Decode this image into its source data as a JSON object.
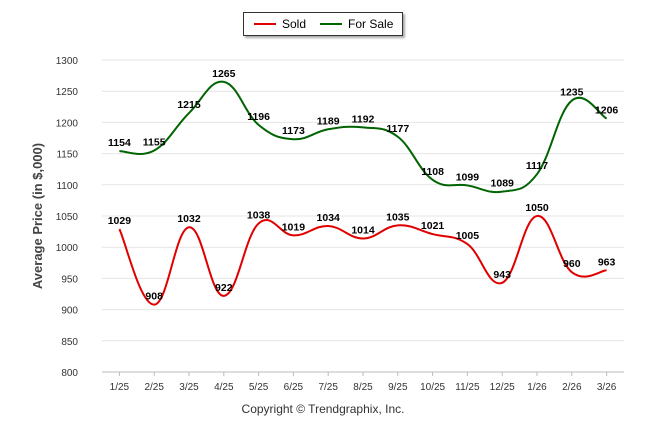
{
  "chart_data": {
    "type": "line",
    "title": "",
    "xlabel": "",
    "ylabel": "Average Price (in $,000)",
    "ylim": [
      800,
      1300
    ],
    "yticks": [
      800,
      850,
      900,
      950,
      1000,
      1050,
      1100,
      1150,
      1200,
      1250,
      1300
    ],
    "categories": [
      "1/25",
      "2/25",
      "3/25",
      "4/25",
      "5/25",
      "6/25",
      "7/25",
      "8/25",
      "9/25",
      "10/25",
      "11/25",
      "12/25",
      "1/26",
      "2/26",
      "3/26"
    ],
    "series": [
      {
        "name": "Sold",
        "color": "#e00000",
        "values": [
          1029,
          908,
          1032,
          922,
          1038,
          1019,
          1034,
          1014,
          1035,
          1021,
          1005,
          943,
          1050,
          960,
          963
        ]
      },
      {
        "name": "For Sale",
        "color": "#006400",
        "values": [
          1154,
          1155,
          1215,
          1265,
          1196,
          1173,
          1189,
          1192,
          1177,
          1108,
          1099,
          1089,
          1117,
          1235,
          1206
        ]
      }
    ],
    "grid": true,
    "legend_position": "top-center"
  },
  "copyright": "Copyright © Trendgraphix, Inc."
}
